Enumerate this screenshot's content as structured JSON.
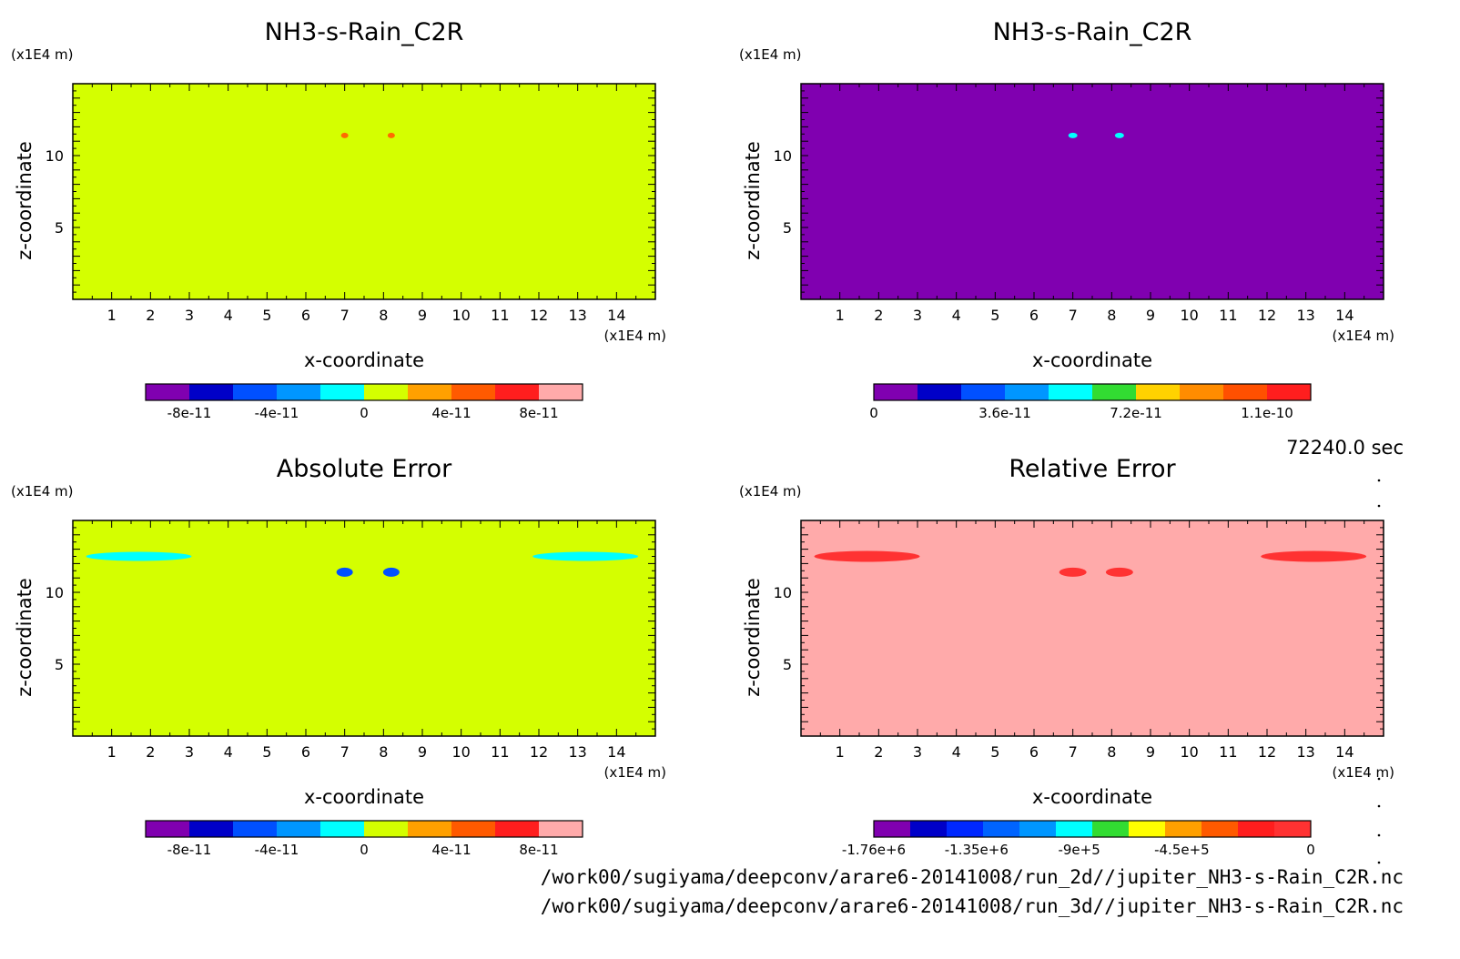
{
  "timestamp": "72240.0 sec",
  "files": [
    "/work00/sugiyama/deepconv/arare6-20141008/run_2d//jupiter_NH3-s-Rain_C2R.nc",
    "/work00/sugiyama/deepconv/arare6-20141008/run_3d//jupiter_NH3-s-Rain_C2R.nc"
  ],
  "chart_data": [
    {
      "type": "heatmap",
      "title": "NH3-s-Rain_C2R",
      "xlabel": "x-coordinate",
      "ylabel": "z-coordinate",
      "x_unit": "(x1E4 m)",
      "y_unit": "(x1E4 m)",
      "xlim": [
        0,
        15
      ],
      "ylim": [
        0,
        15
      ],
      "x_ticks": [
        "1",
        "2",
        "3",
        "4",
        "5",
        "6",
        "7",
        "8",
        "9",
        "10",
        "11",
        "12",
        "13",
        "14"
      ],
      "y_ticks": [
        "5",
        "10"
      ],
      "background_color": "#d4ff00",
      "features": [
        {
          "x": 7.0,
          "z": 11.4,
          "color": "#ff6a00"
        },
        {
          "x": 8.2,
          "z": 11.4,
          "color": "#ff6a00"
        }
      ],
      "colorbar": {
        "colors": [
          "#8000b0",
          "#0000c8",
          "#0050ff",
          "#0096ff",
          "#00ffff",
          "#d4ff00",
          "#ffa000",
          "#ff5a00",
          "#ff1e1e",
          "#ffaaaa"
        ],
        "tick_labels": [
          "-8e-11",
          "-4e-11",
          "0",
          "4e-11",
          "8e-11"
        ]
      }
    },
    {
      "type": "heatmap",
      "title": "NH3-s-Rain_C2R",
      "xlabel": "x-coordinate",
      "ylabel": "z-coordinate",
      "x_unit": "(x1E4 m)",
      "y_unit": "(x1E4 m)",
      "xlim": [
        0,
        15
      ],
      "ylim": [
        0,
        15
      ],
      "x_ticks": [
        "1",
        "2",
        "3",
        "4",
        "5",
        "6",
        "7",
        "8",
        "9",
        "10",
        "11",
        "12",
        "13",
        "14"
      ],
      "y_ticks": [
        "5",
        "10"
      ],
      "background_color": "#8000b0",
      "features": [
        {
          "x": 7.0,
          "z": 11.4,
          "color": "#00ffff"
        },
        {
          "x": 8.2,
          "z": 11.4,
          "color": "#00ffff"
        }
      ],
      "colorbar": {
        "colors": [
          "#8000b0",
          "#0000c8",
          "#0050ff",
          "#0096ff",
          "#00ffff",
          "#32dc32",
          "#ffd200",
          "#ff8c00",
          "#ff5000",
          "#ff1e1e"
        ],
        "tick_labels": [
          "0",
          "3.6e-11",
          "7.2e-11",
          "1.1e-10"
        ]
      }
    },
    {
      "type": "heatmap",
      "title": "Absolute Error",
      "xlabel": "x-coordinate",
      "ylabel": "z-coordinate",
      "x_unit": "(x1E4 m)",
      "y_unit": "(x1E4 m)",
      "xlim": [
        0,
        15
      ],
      "ylim": [
        0,
        15
      ],
      "x_ticks": [
        "1",
        "2",
        "3",
        "4",
        "5",
        "6",
        "7",
        "8",
        "9",
        "10",
        "11",
        "12",
        "13",
        "14"
      ],
      "y_ticks": [
        "5",
        "10"
      ],
      "background_color": "#d4ff00",
      "features": [
        {
          "x": 1.7,
          "z": 12.5,
          "color": "#00ffff"
        },
        {
          "x": 13.2,
          "z": 12.5,
          "color": "#00ffff"
        },
        {
          "x": 7.0,
          "z": 11.4,
          "color": "#0050ff"
        },
        {
          "x": 8.2,
          "z": 11.4,
          "color": "#0050ff"
        }
      ],
      "colorbar": {
        "colors": [
          "#8000b0",
          "#0000c8",
          "#0050ff",
          "#0096ff",
          "#00ffff",
          "#d4ff00",
          "#ffa000",
          "#ff5a00",
          "#ff1e1e",
          "#ffaaaa"
        ],
        "tick_labels": [
          "-8e-11",
          "-4e-11",
          "0",
          "4e-11",
          "8e-11"
        ]
      }
    },
    {
      "type": "heatmap",
      "title": "Relative Error",
      "xlabel": "x-coordinate",
      "ylabel": "z-coordinate",
      "x_unit": "(x1E4 m)",
      "y_unit": "(x1E4 m)",
      "xlim": [
        0,
        15
      ],
      "ylim": [
        0,
        15
      ],
      "x_ticks": [
        "1",
        "2",
        "3",
        "4",
        "5",
        "6",
        "7",
        "8",
        "9",
        "10",
        "11",
        "12",
        "13",
        "14"
      ],
      "y_ticks": [
        "5",
        "10"
      ],
      "background_color": "#ffaaaa",
      "features": [
        {
          "x": 1.7,
          "z": 12.5,
          "color": "#ff3232"
        },
        {
          "x": 13.2,
          "z": 12.5,
          "color": "#ff3232"
        },
        {
          "x": 7.0,
          "z": 11.4,
          "color": "#ff3232"
        },
        {
          "x": 8.2,
          "z": 11.4,
          "color": "#ff3232"
        }
      ],
      "colorbar": {
        "colors": [
          "#8000b0",
          "#0000c8",
          "#0028ff",
          "#0064ff",
          "#0096ff",
          "#00ffff",
          "#32dc32",
          "#ffff00",
          "#ffa000",
          "#ff5a00",
          "#ff1e1e",
          "#ff3232"
        ],
        "tick_labels": [
          "-1.76e+6",
          "-1.35e+6",
          "-9e+5",
          "-4.5e+5",
          "0"
        ]
      }
    }
  ]
}
